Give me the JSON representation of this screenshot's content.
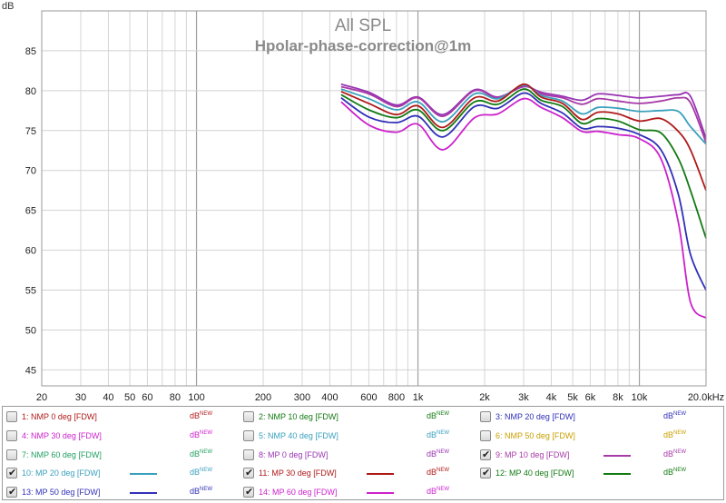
{
  "chart_data": {
    "type": "line",
    "title": "All SPL",
    "subtitle": "Hpolar-phase-correction@1m",
    "ylabel": "dB",
    "x_unit": "Hz",
    "x_scale": "log",
    "xlim": [
      20,
      20000
    ],
    "ylim": [
      43,
      90
    ],
    "grid": true,
    "x_ticks": [
      {
        "value": 20,
        "label": "20"
      },
      {
        "value": 30,
        "label": "30"
      },
      {
        "value": 40,
        "label": "40"
      },
      {
        "value": 50,
        "label": "50"
      },
      {
        "value": 60,
        "label": "60"
      },
      {
        "value": 80,
        "label": "80"
      },
      {
        "value": 100,
        "label": "100"
      },
      {
        "value": 200,
        "label": "200"
      },
      {
        "value": 300,
        "label": "300"
      },
      {
        "value": 400,
        "label": "400"
      },
      {
        "value": 600,
        "label": "600"
      },
      {
        "value": 800,
        "label": "800"
      },
      {
        "value": 1000,
        "label": "1k"
      },
      {
        "value": 2000,
        "label": "2k"
      },
      {
        "value": 3000,
        "label": "3k"
      },
      {
        "value": 4000,
        "label": "4k"
      },
      {
        "value": 5000,
        "label": "5k"
      },
      {
        "value": 6000,
        "label": "6k"
      },
      {
        "value": 8000,
        "label": "8k"
      },
      {
        "value": 10000,
        "label": "10k"
      },
      {
        "value": 20000,
        "label": "20.0kHz"
      }
    ],
    "y_ticks": [
      45,
      50,
      55,
      60,
      65,
      70,
      75,
      80,
      85
    ],
    "x": [
      450,
      600,
      800,
      1000,
      1300,
      1800,
      2300,
      3000,
      3600,
      4500,
      5500,
      6500,
      8000,
      10000,
      12500,
      15000,
      17000,
      20000
    ],
    "series": [
      {
        "name": "8: MP 0 deg [FDW]",
        "color": "#9933b3",
        "values": [
          80.8,
          79.8,
          78.2,
          79.2,
          77.0,
          80.1,
          79.2,
          80.5,
          79.8,
          79.3,
          78.8,
          79.6,
          79.4,
          79.1,
          79.3,
          79.5,
          79.3,
          74.0
        ]
      },
      {
        "name": "9: MP 10 deg [FDW]",
        "color": "#a63aa6",
        "values": [
          80.5,
          79.6,
          78.0,
          79.1,
          76.8,
          80.0,
          79.1,
          80.6,
          79.6,
          79.1,
          78.3,
          79.0,
          78.7,
          78.4,
          78.7,
          79.1,
          78.5,
          73.5
        ]
      },
      {
        "name": "10: MP 20 deg [FDW]",
        "color": "#3aa0bd",
        "values": [
          80.2,
          79.0,
          77.6,
          78.6,
          76.1,
          79.6,
          79.0,
          80.7,
          79.4,
          78.7,
          77.1,
          77.9,
          77.8,
          77.4,
          77.5,
          77.4,
          75.5,
          73.3
        ]
      },
      {
        "name": "11: MP 30 deg [FDW]",
        "color": "#b01919",
        "values": [
          79.9,
          78.4,
          77.0,
          78.1,
          75.4,
          79.1,
          78.7,
          80.8,
          79.2,
          78.4,
          76.4,
          77.3,
          77.1,
          76.2,
          76.5,
          74.9,
          72.6,
          67.5
        ]
      },
      {
        "name": "12: MP 40 deg [FDW]",
        "color": "#137a13",
        "values": [
          79.5,
          77.6,
          76.6,
          77.6,
          75.0,
          78.6,
          78.3,
          80.2,
          78.8,
          78.0,
          75.9,
          76.5,
          76.2,
          75.1,
          74.7,
          71.5,
          67.5,
          61.5
        ]
      },
      {
        "name": "13: MP 50 deg [FDW]",
        "color": "#3030b8",
        "values": [
          79.1,
          76.7,
          76.0,
          76.8,
          74.2,
          78.0,
          77.8,
          79.7,
          78.4,
          77.2,
          75.3,
          75.5,
          75.3,
          74.5,
          72.6,
          67.0,
          59.5,
          55.0
        ]
      },
      {
        "name": "14: MP 60 deg [FDW]",
        "color": "#cc22cc",
        "values": [
          78.6,
          75.7,
          74.8,
          75.8,
          72.6,
          76.6,
          77.1,
          79.0,
          77.9,
          76.6,
          74.9,
          74.9,
          74.5,
          74.0,
          71.5,
          63.5,
          53.5,
          51.5
        ]
      }
    ]
  },
  "legend": {
    "unit_main": "dB",
    "unit_sup": "NEW",
    "items": [
      {
        "label": "1: NMP 0 deg [FDW]",
        "color": "#b01919",
        "checked": false
      },
      {
        "label": "2: NMP 10 deg [FDW]",
        "color": "#137a13",
        "checked": false
      },
      {
        "label": "3: NMP 20 deg [FDW]",
        "color": "#3030b8",
        "checked": false
      },
      {
        "label": "4: NMP 30 deg [FDW]",
        "color": "#cc22cc",
        "checked": false
      },
      {
        "label": "5: NMP 40 deg [FDW]",
        "color": "#3aa0bd",
        "checked": false
      },
      {
        "label": "6: NMP 50 deg [FDW]",
        "color": "#c8a000",
        "checked": false
      },
      {
        "label": "7: NMP 60 deg [FDW]",
        "color": "#20a060",
        "checked": false
      },
      {
        "label": "8: MP 0 deg [FDW]",
        "color": "#9933b3",
        "checked": false
      },
      {
        "label": "9: MP 10 deg [FDW]",
        "color": "#a63aa6",
        "checked": true
      },
      {
        "label": "10: MP 20 deg [FDW]",
        "color": "#3aa0bd",
        "checked": true
      },
      {
        "label": "11: MP 30 deg [FDW]",
        "color": "#b01919",
        "checked": true
      },
      {
        "label": "12: MP 40 deg [FDW]",
        "color": "#137a13",
        "checked": true
      },
      {
        "label": "13: MP 50 deg [FDW]",
        "color": "#3030b8",
        "checked": true
      },
      {
        "label": "14: MP 60 deg [FDW]",
        "color": "#cc22cc",
        "checked": true
      }
    ]
  }
}
